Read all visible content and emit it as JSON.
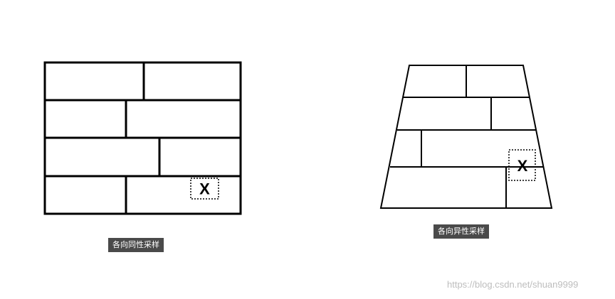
{
  "left_panel": {
    "caption": "各向同性采样",
    "sample_marker": "X"
  },
  "right_panel": {
    "caption": "各向异性采样",
    "sample_marker": "X"
  },
  "watermark": "https://blog.csdn.net/shuan9999"
}
